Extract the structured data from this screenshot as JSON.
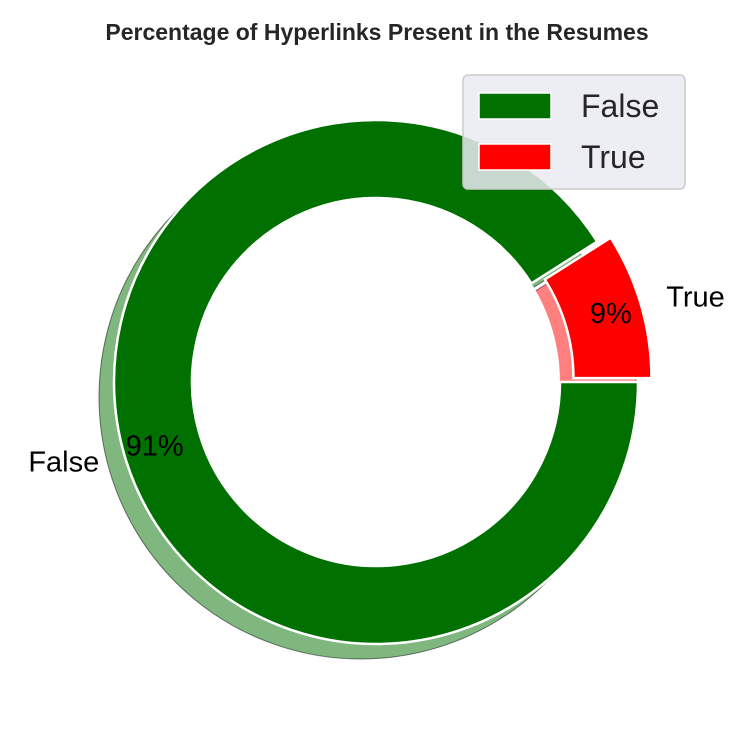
{
  "chart_data": {
    "type": "pie",
    "title": "Percentage of Hyperlinks Present in the Resumes",
    "donut": true,
    "shadow": true,
    "slices": [
      {
        "label": "False",
        "value": 91,
        "pct_label": "91%",
        "color": "#007000",
        "exploded": false
      },
      {
        "label": "True",
        "value": 9,
        "pct_label": "9%",
        "color": "#ff0000",
        "exploded": true
      }
    ],
    "legend": {
      "placement": "top-right",
      "entries": [
        "False",
        "True"
      ]
    }
  }
}
